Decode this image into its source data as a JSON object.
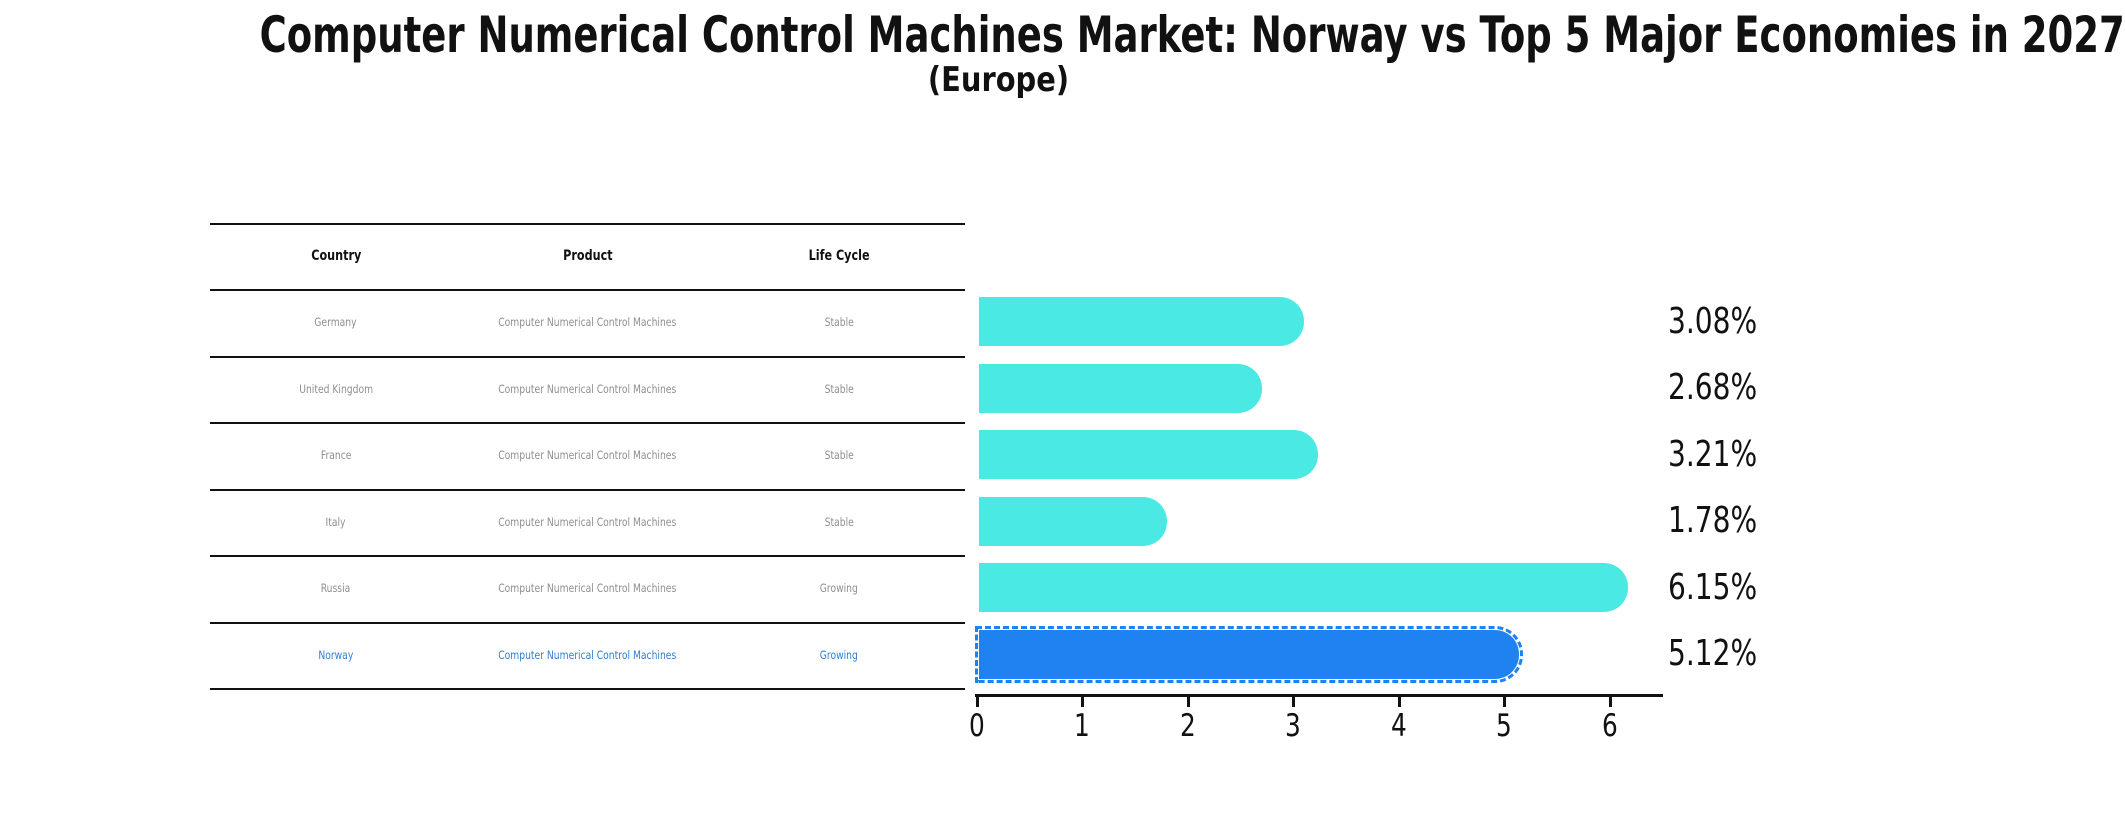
{
  "title": "Computer Numerical Control Machines Market: Norway vs Top 5 Major Economies in 2027",
  "subtitle": "(Europe)",
  "table": {
    "headers": [
      "Country",
      "Product",
      "Life Cycle"
    ],
    "rows": [
      {
        "country": "Germany",
        "product": "Computer Numerical Control Machines",
        "life_cycle": "Stable"
      },
      {
        "country": "United Kingdom",
        "product": "Computer Numerical Control Machines",
        "life_cycle": "Stable"
      },
      {
        "country": "France",
        "product": "Computer Numerical Control Machines",
        "life_cycle": "Stable"
      },
      {
        "country": "Italy",
        "product": "Computer Numerical Control Machines",
        "life_cycle": "Stable"
      },
      {
        "country": "Russia",
        "product": "Computer Numerical Control Machines",
        "life_cycle": "Growing"
      },
      {
        "country": "Norway",
        "product": "Computer Numerical Control Machines",
        "life_cycle": "Growing"
      }
    ],
    "highlight_row": "Norway",
    "highlight_color": "#2E7FD0",
    "text_color": "#8f8f8f"
  },
  "chart_data": {
    "type": "bar",
    "orientation": "horizontal",
    "categories": [
      "Germany",
      "United Kingdom",
      "France",
      "Italy",
      "Russia",
      "Norway"
    ],
    "values": [
      3.08,
      2.68,
      3.21,
      1.78,
      6.15,
      5.12
    ],
    "value_labels": [
      "3.08%",
      "2.68%",
      "3.21%",
      "1.78%",
      "6.15%",
      "5.12%"
    ],
    "xticks": [
      "0",
      "1",
      "2",
      "3",
      "4",
      "5",
      "6"
    ],
    "xlim": [
      0,
      6.5
    ],
    "grid": false,
    "legend": false,
    "bar_color": "#4BE9E4",
    "highlight_bar_color": "#1E82F0",
    "highlight_index": 5
  }
}
